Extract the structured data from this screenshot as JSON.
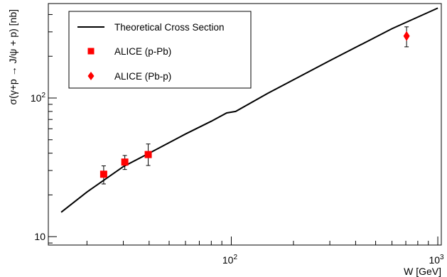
{
  "chart_data": {
    "type": "line",
    "xlabel": "W [GeV]",
    "ylabel": "σ(γ+p → J/ψ + p) [nb]",
    "xscale": "log",
    "yscale": "log",
    "xlim": [
      13,
      1040
    ],
    "ylim": [
      8.7,
      480
    ],
    "x_ticks": [
      {
        "value": 100,
        "base": "10",
        "exp": "2"
      },
      {
        "value": 1000,
        "base": "10",
        "exp": "3"
      }
    ],
    "y_ticks": [
      {
        "value": 10,
        "label": "10"
      },
      {
        "value": 100,
        "base": "10",
        "exp": "2"
      }
    ],
    "legend": {
      "position": "top-left",
      "entries": [
        {
          "label": "Theoretical Cross Section",
          "marker": "line",
          "color": "#000000"
        },
        {
          "label": "ALICE (p-Pb)",
          "marker": "square",
          "color": "#ff0000"
        },
        {
          "label": "ALICE (Pb-p)",
          "marker": "diamond",
          "color": "#ff0000"
        }
      ]
    },
    "series": [
      {
        "name": "Theoretical Cross Section",
        "kind": "line",
        "color": "#000000",
        "x": [
          15,
          20,
          30,
          40,
          60,
          80,
          95,
          105,
          150,
          300,
          600,
          1000
        ],
        "y": [
          15,
          21,
          32,
          40,
          55,
          68,
          78,
          80,
          108,
          186,
          316,
          445
        ]
      },
      {
        "name": "ALICE (p-Pb)",
        "kind": "points",
        "marker": "square",
        "color": "#ff0000",
        "x": [
          24.1,
          30.5,
          39.6
        ],
        "y": [
          28.2,
          34.5,
          39.1
        ],
        "err_low": [
          4.2,
          4.0,
          6.5
        ],
        "err_high": [
          4.2,
          4.0,
          7.5
        ]
      },
      {
        "name": "ALICE (Pb-p)",
        "kind": "points",
        "marker": "diamond",
        "color": "#ff0000",
        "x": [
          706
        ],
        "y": [
          280
        ],
        "err_low": [
          46
        ],
        "err_high": [
          46
        ]
      }
    ]
  }
}
